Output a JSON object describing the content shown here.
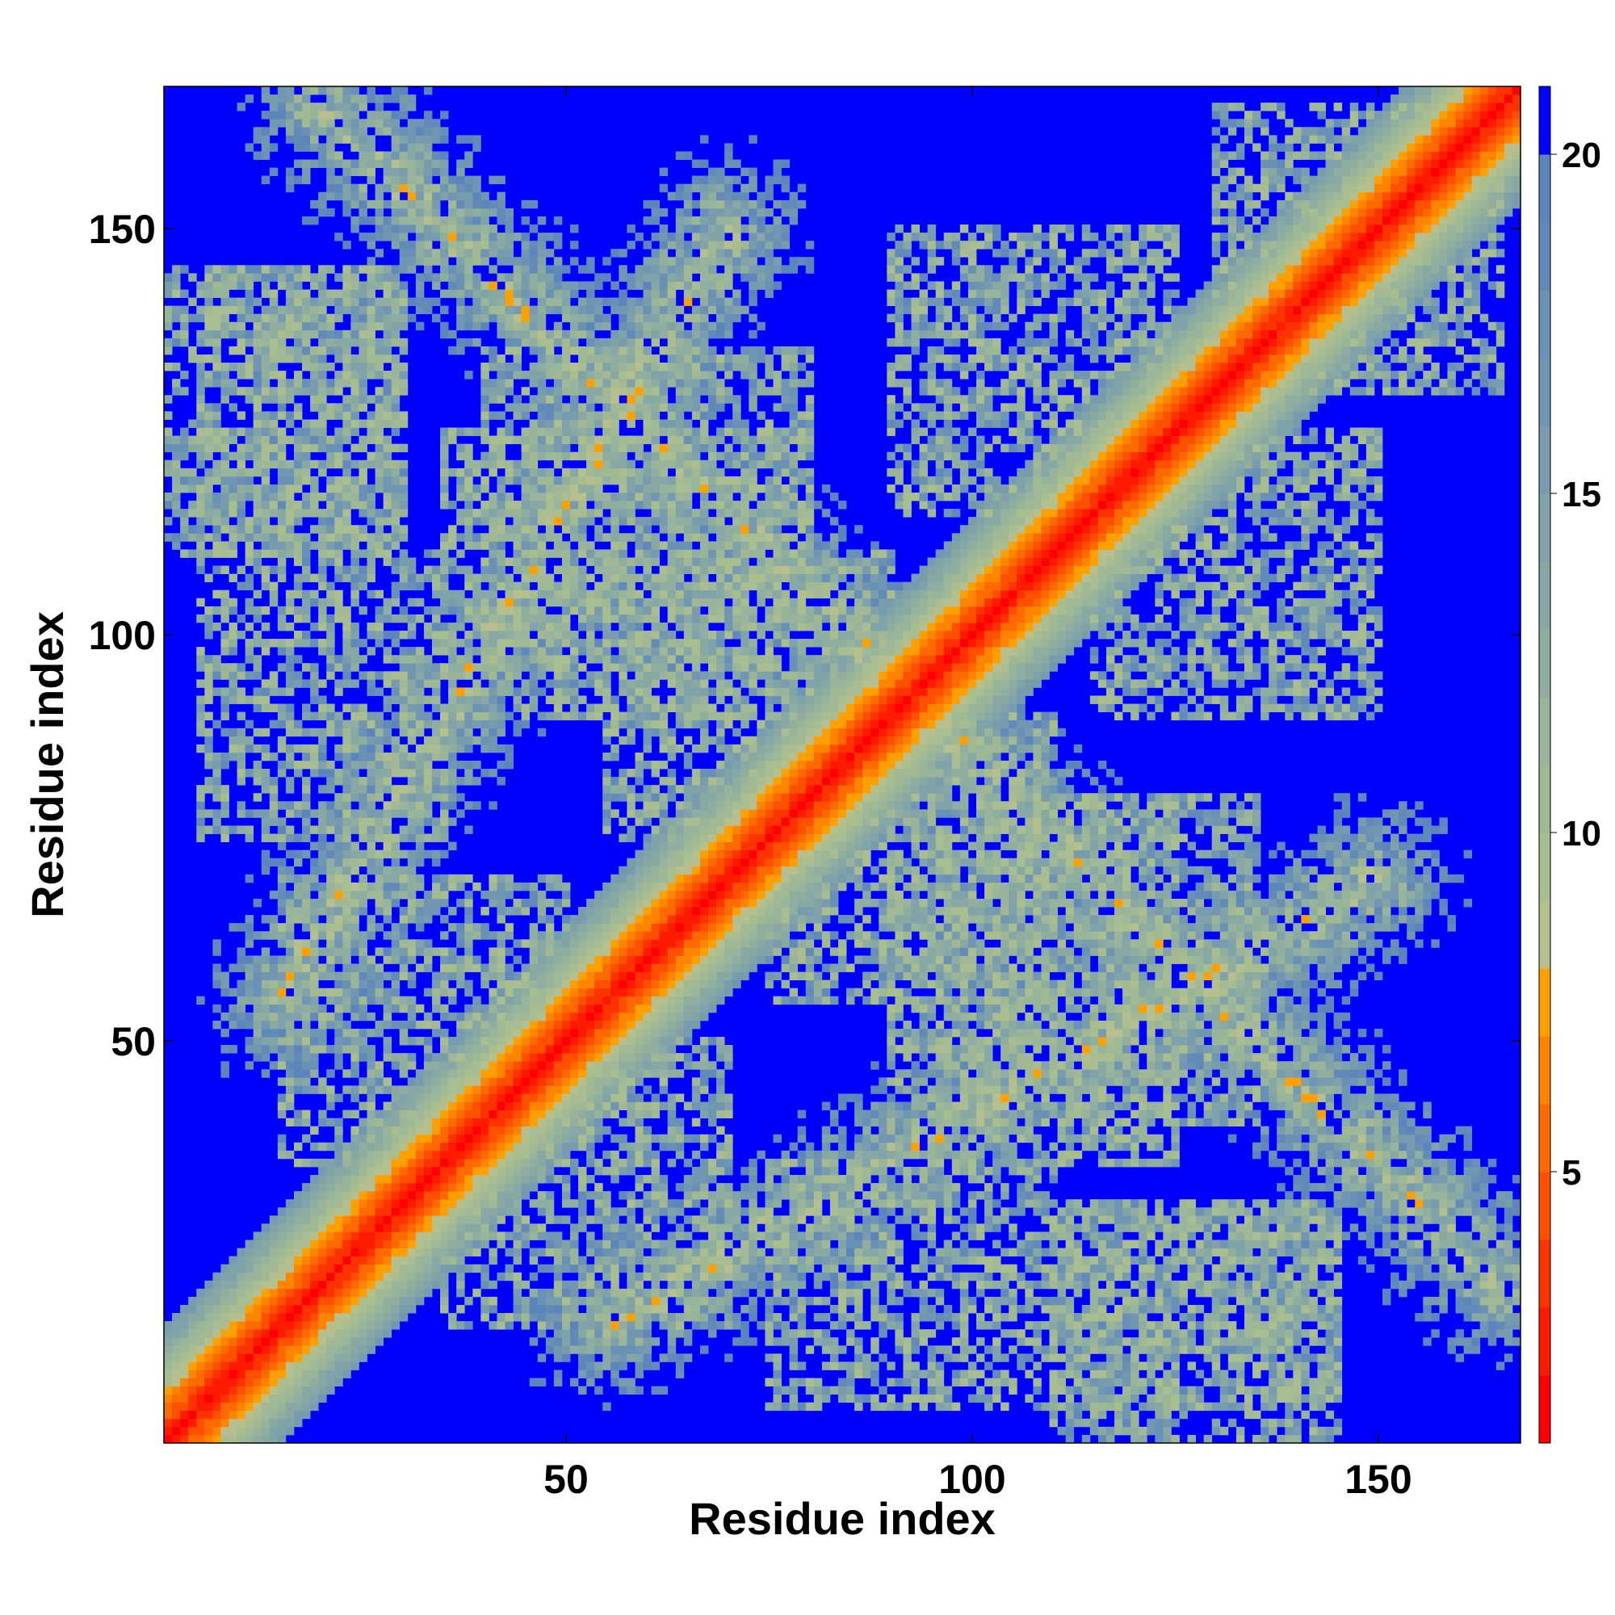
{
  "chart_data": {
    "type": "heatmap",
    "title": "",
    "xlabel": "Residue index",
    "ylabel": "Residue index",
    "n_residues": 167,
    "xlim": [
      1,
      167
    ],
    "ylim": [
      1,
      167
    ],
    "x_ticks": [
      50,
      100,
      150
    ],
    "y_ticks": [
      50,
      100,
      150
    ],
    "x_tick_labels": [
      "50",
      "100",
      "150"
    ],
    "y_tick_labels": [
      "50",
      "100",
      "150"
    ],
    "grid": false,
    "colorbar": {
      "placement": "right",
      "range": [
        1,
        21
      ],
      "ticks": [
        5,
        10,
        15,
        20
      ],
      "tick_labels": [
        "5",
        "10",
        "15",
        "20"
      ],
      "bands": [
        {
          "from": 1,
          "to": 2,
          "color": "#ff0000"
        },
        {
          "from": 2,
          "to": 3,
          "color": "#ff1a00"
        },
        {
          "from": 3,
          "to": 4,
          "color": "#ff3300"
        },
        {
          "from": 4,
          "to": 5,
          "color": "#ff5000"
        },
        {
          "from": 5,
          "to": 6,
          "color": "#ff6a00"
        },
        {
          "from": 6,
          "to": 7,
          "color": "#ff8500"
        },
        {
          "from": 7,
          "to": 8,
          "color": "#ffa000"
        },
        {
          "from": 8,
          "to": 9,
          "color": "#b5c08e"
        },
        {
          "from": 9,
          "to": 10,
          "color": "#a8bd90"
        },
        {
          "from": 10,
          "to": 11,
          "color": "#a0b994"
        },
        {
          "from": 11,
          "to": 12,
          "color": "#98b49a"
        },
        {
          "from": 12,
          "to": 13,
          "color": "#90ae9f"
        },
        {
          "from": 13,
          "to": 14,
          "color": "#88a8a4"
        },
        {
          "from": 14,
          "to": 15,
          "color": "#80a2a9"
        },
        {
          "from": 15,
          "to": 16,
          "color": "#789cae"
        },
        {
          "from": 16,
          "to": 17,
          "color": "#7096b2"
        },
        {
          "from": 17,
          "to": 18,
          "color": "#6990b5"
        },
        {
          "from": 18,
          "to": 19,
          "color": "#628ab8"
        },
        {
          "from": 19,
          "to": 20,
          "color": "#5c86bb"
        },
        {
          "from": 20,
          "to": 21,
          "color": "#0000ff"
        }
      ]
    },
    "value_description": "Symmetric residue-residue distance map; values near 1-8 (red/orange) along the main diagonal, values >= 20 (blue) as background",
    "contact_features": [
      {
        "kind": "diagonal",
        "center_offset": 0,
        "half_width": 14
      },
      {
        "kind": "antidiagonal",
        "from": [
          20,
          165
        ],
        "to": [
          107,
          78
        ],
        "width": 12
      },
      {
        "kind": "antidiagonal",
        "from": [
          55,
          15
        ],
        "to": [
          150,
          70
        ],
        "width": 12
      },
      {
        "kind": "region",
        "x": [
          15,
          50
        ],
        "y": [
          35,
          70
        ]
      },
      {
        "kind": "region",
        "x": [
          55,
          90
        ],
        "y": [
          75,
          110
        ]
      },
      {
        "kind": "region",
        "x": [
          95,
          135
        ],
        "y": [
          40,
          80
        ]
      },
      {
        "kind": "region",
        "x": [
          110,
          145
        ],
        "y": [
          5,
          30
        ]
      },
      {
        "kind": "region",
        "x": [
          75,
          110
        ],
        "y": [
          5,
          35
        ]
      },
      {
        "kind": "region",
        "x": [
          1,
          30
        ],
        "y": [
          110,
          145
        ]
      },
      {
        "kind": "region",
        "x": [
          35,
          80
        ],
        "y": [
          90,
          125
        ]
      },
      {
        "kind": "region",
        "x": [
          90,
          125
        ],
        "y": [
          115,
          150
        ]
      },
      {
        "kind": "region",
        "x": [
          135,
          165
        ],
        "y": [
          130,
          165
        ]
      }
    ]
  }
}
